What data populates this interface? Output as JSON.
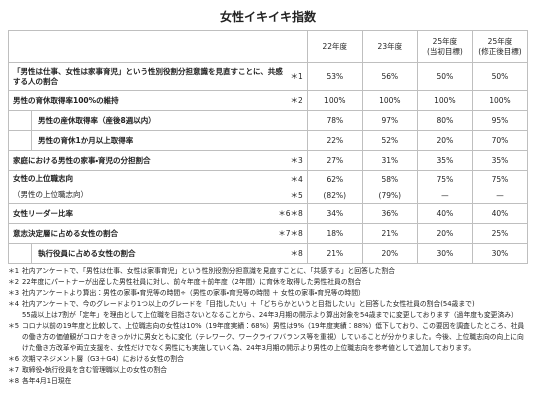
{
  "title": "女性イキイキ指数",
  "table": {
    "header": [
      "22年度",
      "23年度",
      "25年度\n(当初目標)",
      "25年度\n(修正後目標)"
    ],
    "rows": [
      {
        "label": "「男性は仕事、女性は家事育児」という性別役割分担意識を見直すことに、共感する人の割合",
        "note": "＊1",
        "values": [
          "53%",
          "56%",
          "50%",
          "50%"
        ]
      },
      {
        "label": "男性の育休取得率100%の維持",
        "note": "＊2",
        "values": [
          "100%",
          "100%",
          "100%",
          "100%"
        ],
        "children": [
          {
            "label": "男性の産休取得率（産後8週以内）",
            "values": [
              "78%",
              "97%",
              "80%",
              "95%"
            ]
          },
          {
            "label": "男性の育休1か月以上取得率",
            "values": [
              "22%",
              "52%",
              "20%",
              "70%"
            ]
          }
        ]
      },
      {
        "label": "家庭における男性の家事・育児の分担割合",
        "note": "＊3",
        "values": [
          "27%",
          "31%",
          "35%",
          "35%"
        ]
      },
      {
        "label": "女性の上位職志向",
        "note": "＊4",
        "values": [
          "62%",
          "58%",
          "75%",
          "75%"
        ],
        "reference": {
          "label": "（男性の上位職志向）",
          "note": "＊5",
          "values": [
            "(82%)",
            "(79%)",
            "—",
            "—"
          ]
        }
      },
      {
        "label": "女性リーダー比率",
        "note": "＊6＊8",
        "values": [
          "34%",
          "36%",
          "40%",
          "40%"
        ]
      },
      {
        "label": "意志決定層に占める女性の割合",
        "note": "＊7＊8",
        "values": [
          "18%",
          "21%",
          "20%",
          "25%"
        ],
        "children": [
          {
            "label": "執行役員に占める女性の割合",
            "note": "＊8",
            "values": [
              "21%",
              "20%",
              "30%",
              "30%"
            ]
          }
        ]
      }
    ]
  },
  "footnotes": [
    {
      "mark": "＊1",
      "text": "社内アンケートで、「男性は仕事、女性は家事育児」という性別役割分担意識を見直すことに、「共感する」と回答した割合"
    },
    {
      "mark": "＊2",
      "text": "22年度にパートナーが出産した男性社員に対し、前々年度＋前年度（2年間）に育休を取得した男性社員の割合"
    },
    {
      "mark": "＊3",
      "text": "社内アンケートより算出：男性の家事・育児等の時間÷（男性の家事・育児等の時間 ＋ 女性の家事・育児等の時間）"
    },
    {
      "mark": "＊4",
      "text": "社内アンケートで、今のグレードより1つ以上のグレードを「目指したい」＋「どちらかというと目指したい」と回答した女性社員の割合(54歳まで)\n55歳以上は7割が「定年」を理由として上位職を目指さないとなることから、24年3月期の開示より算出対象を54歳までに変更しております（過年度も変更済み）"
    },
    {
      "mark": "＊5",
      "text": "コロナ以前の19年度と比較して、上位職志向の女性は10%（19年度実績：68%）男性は9%（19年度実績：88%）低下しており、この要因を調査したところ、社員の働き方の価値観がコロナをきっかけに男女ともに変化（テレワーク、ワークライフバランス等を重視）していることが分かりました。今後、上位職志向の向上に向けた働き方改革や両立支援を、女性だけでなく男性にも実施していく為、24年3月期の開示より男性の上位職志向を参考値として追加しております。"
    },
    {
      "mark": "＊6",
      "text": "次期マネジメント層（G3＋G4）における女性の割合"
    },
    {
      "mark": "＊7",
      "text": "取締役・執行役員を含む管理職以上の女性の割合"
    },
    {
      "mark": "＊8",
      "text": "各年4月1日現在"
    }
  ]
}
